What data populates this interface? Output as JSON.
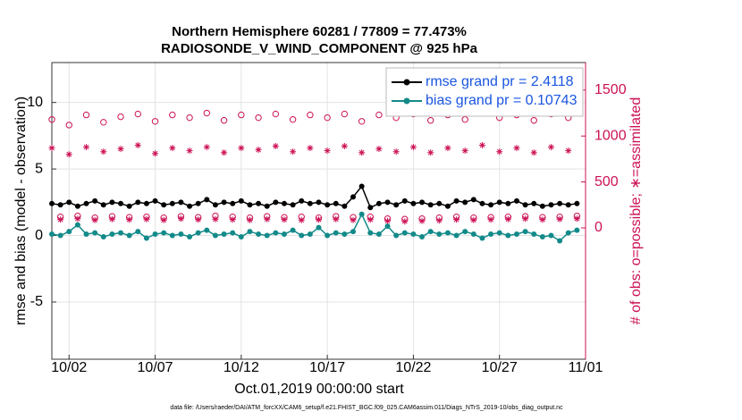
{
  "chart_data": {
    "type": "line",
    "title": "Northern Hemisphere 60281 / 77809 = 77.473%",
    "subtitle": "RADIOSONDE_V_WIND_COMPONENT @ 925 hPa",
    "xlabel": "Oct.01,2019 00:00:00 start",
    "ylabel": "rmse and bias (model - observation)",
    "y2label": "# of obs: o=possible; ∗=assimilated",
    "footnote": "data file: /Users/raeder/DAI/ATM_forcXX/CAM6_setup/f.e21.FHIST_BGC.f09_025.CAM6assim.011/Diags_NTrS_2019-10/obs_diag_output.nc",
    "xlim": [
      1,
      32
    ],
    "xticks": [
      {
        "value": 2,
        "label": "10/02"
      },
      {
        "value": 7,
        "label": "10/07"
      },
      {
        "value": 12,
        "label": "10/12"
      },
      {
        "value": 17,
        "label": "10/17"
      },
      {
        "value": 22,
        "label": "10/22"
      },
      {
        "value": 27,
        "label": "10/27"
      },
      {
        "value": 32,
        "label": "11/01"
      }
    ],
    "ylim": [
      -9.3,
      13
    ],
    "yticks": [
      -5,
      0,
      5,
      10
    ],
    "y2lim": [
      -1430,
      1800
    ],
    "y2ticks": [
      0,
      500,
      1000,
      1500
    ],
    "grid": true,
    "legend": "upper right",
    "x": [
      1,
      1.5,
      2,
      2.5,
      3,
      3.5,
      4,
      4.5,
      5,
      5.5,
      6,
      6.5,
      7,
      7.5,
      8,
      8.5,
      9,
      9.5,
      10,
      10.5,
      11,
      11.5,
      12,
      12.5,
      13,
      13.5,
      14,
      14.5,
      15,
      15.5,
      16,
      16.5,
      17,
      17.5,
      18,
      18.5,
      19,
      19.5,
      20,
      20.5,
      21,
      21.5,
      22,
      22.5,
      23,
      23.5,
      24,
      24.5,
      25,
      25.5,
      26,
      26.5,
      27,
      27.5,
      28,
      28.5,
      29,
      29.5,
      30,
      30.5,
      31,
      31.5
    ],
    "series": [
      {
        "name": "rmse grand pr = 2.4118",
        "color": "#000000",
        "marker": "dot-line",
        "values": [
          2.4,
          2.3,
          2.5,
          2.2,
          2.4,
          2.6,
          2.3,
          2.5,
          2.4,
          2.2,
          2.5,
          2.4,
          2.6,
          2.3,
          2.4,
          2.5,
          2.2,
          2.4,
          2.7,
          2.3,
          2.5,
          2.4,
          2.6,
          2.3,
          2.4,
          2.2,
          2.5,
          2.4,
          2.3,
          2.6,
          2.4,
          2.5,
          2.3,
          2.4,
          2.2,
          2.9,
          3.7,
          2.1,
          2.4,
          2.5,
          2.3,
          2.6,
          2.4,
          2.5,
          2.3,
          2.4,
          2.2,
          2.6,
          2.5,
          2.7,
          2.4,
          2.3,
          2.5,
          2.4,
          2.6,
          2.3,
          2.4,
          2.2,
          2.3,
          2.4,
          2.3,
          2.4
        ]
      },
      {
        "name": "bias grand pr = 0.10743",
        "color": "#138a8a",
        "marker": "dot-line",
        "values": [
          0.1,
          0.0,
          0.3,
          0.8,
          0.1,
          0.2,
          -0.1,
          0.1,
          0.2,
          0.0,
          0.3,
          -0.2,
          0.1,
          0.2,
          0.0,
          0.1,
          -0.1,
          0.2,
          0.4,
          0.0,
          0.1,
          0.2,
          -0.1,
          0.3,
          0.1,
          0.0,
          0.2,
          0.1,
          0.4,
          0.0,
          0.1,
          0.6,
          0.0,
          0.2,
          0.1,
          0.3,
          1.6,
          0.2,
          0.1,
          0.7,
          0.0,
          0.2,
          0.1,
          -0.1,
          0.3,
          0.1,
          0.2,
          0.0,
          0.3,
          0.1,
          -0.2,
          0.1,
          0.2,
          0.0,
          0.1,
          0.3,
          0.1,
          -0.1,
          0.0,
          -0.4,
          0.2,
          0.4
        ]
      },
      {
        "color": "#cc1155",
        "marker": "circle",
        "axis": "y2",
        "values": [
          1180,
          120,
          1120,
          130,
          1230,
          110,
          1150,
          125,
          1210,
          115,
          1240,
          120,
          1160,
          110,
          1230,
          125,
          1200,
          115,
          1250,
          130,
          1170,
          120,
          1230,
          110,
          1200,
          125,
          1240,
          115,
          1180,
          120,
          1230,
          110,
          1200,
          125,
          1240,
          115,
          1160,
          120,
          1230,
          100,
          1200,
          95,
          1240,
          100,
          1170,
          110,
          1230,
          120,
          1180,
          110,
          1250,
          115,
          1200,
          120,
          1230,
          125,
          1170,
          115,
          1240,
          120,
          1200,
          130
        ]
      },
      {
        "color": "#cc1155",
        "marker": "asterisk",
        "axis": "y2",
        "values": [
          870,
          90,
          800,
          100,
          880,
          85,
          830,
          95,
          860,
          90,
          900,
          95,
          810,
          85,
          870,
          100,
          840,
          90,
          880,
          95,
          820,
          90,
          870,
          85,
          850,
          95,
          890,
          90,
          830,
          85,
          870,
          90,
          840,
          95,
          890,
          85,
          820,
          90,
          860,
          75,
          830,
          70,
          880,
          75,
          820,
          80,
          870,
          90,
          840,
          85,
          900,
          90,
          830,
          95,
          870,
          100,
          820,
          90,
          880,
          95,
          840,
          100
        ]
      }
    ]
  }
}
